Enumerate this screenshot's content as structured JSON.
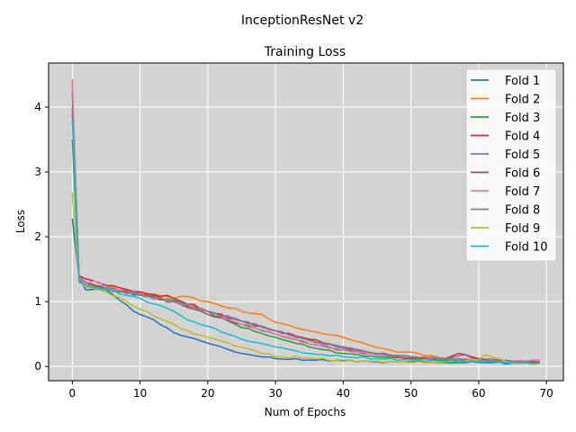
{
  "figure": {
    "suptitle": "InceptionResNet v2"
  },
  "chart_data": {
    "type": "line",
    "title": "Training Loss",
    "xlabel": "Num of Epochs",
    "ylabel": "Loss",
    "xlim": [
      -3.5,
      72.5
    ],
    "ylim": [
      -0.22,
      4.68
    ],
    "xticks": [
      0,
      10,
      20,
      30,
      40,
      50,
      60,
      70
    ],
    "yticks": [
      0,
      1,
      2,
      3,
      4
    ],
    "grid": true,
    "legend_position": "top-right",
    "background": "#d3d3d3",
    "series": [
      {
        "name": "Fold 1",
        "color": "#1f77b4",
        "keypoints": [
          [
            0,
            2.28
          ],
          [
            1,
            1.35
          ],
          [
            2,
            1.18
          ],
          [
            5,
            1.18
          ],
          [
            7,
            1.02
          ],
          [
            10,
            0.8
          ],
          [
            12,
            0.72
          ],
          [
            15,
            0.52
          ],
          [
            20,
            0.36
          ],
          [
            25,
            0.2
          ],
          [
            30,
            0.12
          ],
          [
            35,
            0.1
          ],
          [
            40,
            0.09
          ],
          [
            45,
            0.07
          ],
          [
            50,
            0.07
          ],
          [
            55,
            0.06
          ],
          [
            60,
            0.06
          ],
          [
            65,
            0.05
          ],
          [
            69,
            0.05
          ]
        ]
      },
      {
        "name": "Fold 2",
        "color": "#ff7f0e",
        "keypoints": [
          [
            0,
            4.43
          ],
          [
            1,
            1.35
          ],
          [
            2,
            1.28
          ],
          [
            5,
            1.22
          ],
          [
            10,
            1.15
          ],
          [
            15,
            1.05
          ],
          [
            17,
            1.08
          ],
          [
            20,
            1.0
          ],
          [
            25,
            0.85
          ],
          [
            28,
            0.8
          ],
          [
            30,
            0.68
          ],
          [
            35,
            0.55
          ],
          [
            40,
            0.45
          ],
          [
            44,
            0.32
          ],
          [
            48,
            0.22
          ],
          [
            50,
            0.22
          ],
          [
            55,
            0.12
          ],
          [
            60,
            0.08
          ],
          [
            65,
            0.06
          ],
          [
            69,
            0.06
          ]
        ]
      },
      {
        "name": "Fold 3",
        "color": "#2ca02c",
        "keypoints": [
          [
            0,
            3.5
          ],
          [
            1,
            1.32
          ],
          [
            2,
            1.25
          ],
          [
            5,
            1.2
          ],
          [
            10,
            1.1
          ],
          [
            15,
            1.02
          ],
          [
            20,
            0.85
          ],
          [
            25,
            0.6
          ],
          [
            30,
            0.45
          ],
          [
            35,
            0.3
          ],
          [
            40,
            0.2
          ],
          [
            45,
            0.15
          ],
          [
            50,
            0.12
          ],
          [
            55,
            0.1
          ],
          [
            60,
            0.08
          ],
          [
            65,
            0.07
          ],
          [
            69,
            0.07
          ]
        ]
      },
      {
        "name": "Fold 4",
        "color": "#d62728",
        "keypoints": [
          [
            0,
            3.9
          ],
          [
            1,
            1.4
          ],
          [
            2,
            1.35
          ],
          [
            5,
            1.25
          ],
          [
            10,
            1.15
          ],
          [
            15,
            1.05
          ],
          [
            20,
            0.85
          ],
          [
            25,
            0.7
          ],
          [
            30,
            0.55
          ],
          [
            35,
            0.42
          ],
          [
            40,
            0.3
          ],
          [
            45,
            0.18
          ],
          [
            50,
            0.13
          ],
          [
            55,
            0.12
          ],
          [
            57,
            0.2
          ],
          [
            60,
            0.12
          ],
          [
            65,
            0.08
          ],
          [
            69,
            0.07
          ]
        ]
      },
      {
        "name": "Fold 5",
        "color": "#9467bd",
        "keypoints": [
          [
            0,
            4.3
          ],
          [
            1,
            1.38
          ],
          [
            2,
            1.3
          ],
          [
            5,
            1.22
          ],
          [
            10,
            1.12
          ],
          [
            15,
            1.0
          ],
          [
            20,
            0.85
          ],
          [
            25,
            0.7
          ],
          [
            30,
            0.55
          ],
          [
            35,
            0.4
          ],
          [
            40,
            0.28
          ],
          [
            45,
            0.2
          ],
          [
            50,
            0.15
          ],
          [
            55,
            0.12
          ],
          [
            58,
            0.18
          ],
          [
            60,
            0.1
          ],
          [
            65,
            0.08
          ],
          [
            69,
            0.07
          ]
        ]
      },
      {
        "name": "Fold 6",
        "color": "#8c564b",
        "keypoints": [
          [
            0,
            4.2
          ],
          [
            1,
            1.35
          ],
          [
            2,
            1.28
          ],
          [
            5,
            1.2
          ],
          [
            10,
            1.1
          ],
          [
            15,
            1.0
          ],
          [
            20,
            0.8
          ],
          [
            25,
            0.65
          ],
          [
            30,
            0.5
          ],
          [
            35,
            0.35
          ],
          [
            40,
            0.25
          ],
          [
            45,
            0.18
          ],
          [
            50,
            0.14
          ],
          [
            55,
            0.12
          ],
          [
            60,
            0.1
          ],
          [
            65,
            0.08
          ],
          [
            69,
            0.07
          ]
        ]
      },
      {
        "name": "Fold 7",
        "color": "#e377c2",
        "keypoints": [
          [
            0,
            4.4
          ],
          [
            1,
            1.35
          ],
          [
            2,
            1.28
          ],
          [
            4,
            1.3
          ],
          [
            5,
            1.2
          ],
          [
            10,
            1.1
          ],
          [
            15,
            1.0
          ],
          [
            20,
            0.85
          ],
          [
            25,
            0.65
          ],
          [
            30,
            0.5
          ],
          [
            35,
            0.35
          ],
          [
            40,
            0.25
          ],
          [
            45,
            0.18
          ],
          [
            50,
            0.15
          ],
          [
            55,
            0.12
          ],
          [
            60,
            0.1
          ],
          [
            65,
            0.08
          ],
          [
            69,
            0.1
          ]
        ]
      },
      {
        "name": "Fold 8",
        "color": "#7f7f7f",
        "keypoints": [
          [
            0,
            4.0
          ],
          [
            1,
            1.3
          ],
          [
            2,
            1.25
          ],
          [
            5,
            1.2
          ],
          [
            10,
            1.1
          ],
          [
            15,
            1.0
          ],
          [
            20,
            0.85
          ],
          [
            25,
            0.7
          ],
          [
            30,
            0.55
          ],
          [
            35,
            0.4
          ],
          [
            40,
            0.3
          ],
          [
            45,
            0.2
          ],
          [
            50,
            0.15
          ],
          [
            55,
            0.12
          ],
          [
            60,
            0.1
          ],
          [
            65,
            0.08
          ],
          [
            69,
            0.07
          ]
        ]
      },
      {
        "name": "Fold 9",
        "color": "#bcbd22",
        "keypoints": [
          [
            0,
            2.68
          ],
          [
            1,
            1.3
          ],
          [
            2,
            1.22
          ],
          [
            5,
            1.15
          ],
          [
            8,
            1.0
          ],
          [
            10,
            0.88
          ],
          [
            15,
            0.65
          ],
          [
            18,
            0.5
          ],
          [
            20,
            0.45
          ],
          [
            25,
            0.3
          ],
          [
            30,
            0.15
          ],
          [
            35,
            0.13
          ],
          [
            40,
            0.08
          ],
          [
            45,
            0.08
          ],
          [
            50,
            0.06
          ],
          [
            55,
            0.07
          ],
          [
            60,
            0.1
          ],
          [
            61,
            0.18
          ],
          [
            65,
            0.05
          ],
          [
            69,
            0.05
          ]
        ]
      },
      {
        "name": "Fold 10",
        "color": "#17becf",
        "keypoints": [
          [
            0,
            3.8
          ],
          [
            1,
            1.3
          ],
          [
            2,
            1.25
          ],
          [
            5,
            1.18
          ],
          [
            10,
            1.05
          ],
          [
            15,
            0.85
          ],
          [
            17,
            0.72
          ],
          [
            20,
            0.62
          ],
          [
            25,
            0.42
          ],
          [
            30,
            0.3
          ],
          [
            35,
            0.2
          ],
          [
            40,
            0.15
          ],
          [
            45,
            0.12
          ],
          [
            50,
            0.1
          ],
          [
            55,
            0.08
          ],
          [
            60,
            0.07
          ],
          [
            65,
            0.06
          ],
          [
            69,
            0.05
          ]
        ]
      }
    ]
  }
}
